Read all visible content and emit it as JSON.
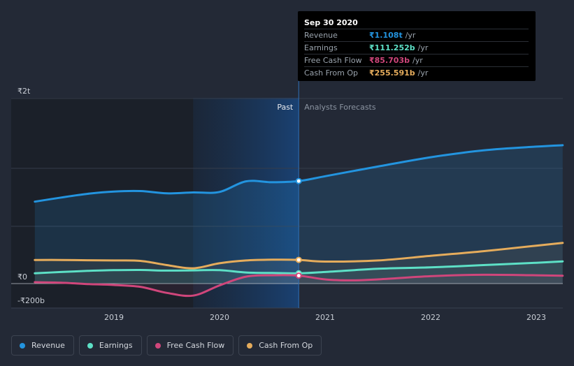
{
  "chart_data": {
    "type": "line",
    "title": "",
    "xlabel": "",
    "ylabel": "",
    "y_unit": "₹",
    "y_ticks": [
      {
        "value": 2000,
        "label": "₹2t"
      },
      {
        "value": 0,
        "label": "₹0"
      },
      {
        "value": -200,
        "label": "-₹200b"
      }
    ],
    "ylim": [
      -270,
      2000
    ],
    "xlim": [
      2018.2,
      2023.25
    ],
    "x_ticks": [
      {
        "value": 2019,
        "label": "2019"
      },
      {
        "value": 2020,
        "label": "2020"
      },
      {
        "value": 2021,
        "label": "2021"
      },
      {
        "value": 2022,
        "label": "2022"
      },
      {
        "value": 2023,
        "label": "2023"
      }
    ],
    "past_label": "Past",
    "forecast_label": "Analysts Forecasts",
    "past_start_x": 2019.75,
    "divider_x": 2020.75,
    "series": [
      {
        "name": "Revenue",
        "color": "#2394df",
        "fill": true,
        "points": [
          [
            2018.25,
            885
          ],
          [
            2018.5,
            930
          ],
          [
            2018.75,
            970
          ],
          [
            2019.0,
            995
          ],
          [
            2019.25,
            1000
          ],
          [
            2019.5,
            975
          ],
          [
            2019.75,
            985
          ],
          [
            2020.0,
            990
          ],
          [
            2020.25,
            1105
          ],
          [
            2020.5,
            1095
          ],
          [
            2020.75,
            1108
          ],
          [
            2021.0,
            1160
          ],
          [
            2021.5,
            1265
          ],
          [
            2022.0,
            1365
          ],
          [
            2022.5,
            1440
          ],
          [
            2023.0,
            1480
          ],
          [
            2023.25,
            1495
          ]
        ]
      },
      {
        "name": "Earnings",
        "color": "#5de0c6",
        "fill": false,
        "points": [
          [
            2018.25,
            112
          ],
          [
            2018.5,
            125
          ],
          [
            2018.75,
            137
          ],
          [
            2019.0,
            145
          ],
          [
            2019.25,
            147
          ],
          [
            2019.5,
            140
          ],
          [
            2019.75,
            143
          ],
          [
            2020.0,
            145
          ],
          [
            2020.25,
            120
          ],
          [
            2020.5,
            115
          ],
          [
            2020.75,
            111
          ],
          [
            2021.0,
            125
          ],
          [
            2021.5,
            160
          ],
          [
            2022.0,
            175
          ],
          [
            2022.5,
            200
          ],
          [
            2023.0,
            225
          ],
          [
            2023.25,
            240
          ]
        ]
      },
      {
        "name": "Free Cash Flow",
        "color": "#d0467b",
        "fill": false,
        "points": [
          [
            2018.25,
            15
          ],
          [
            2018.5,
            10
          ],
          [
            2018.75,
            -5
          ],
          [
            2019.0,
            -15
          ],
          [
            2019.25,
            -35
          ],
          [
            2019.5,
            -100
          ],
          [
            2019.75,
            -130
          ],
          [
            2020.0,
            -20
          ],
          [
            2020.25,
            75
          ],
          [
            2020.5,
            90
          ],
          [
            2020.75,
            86
          ],
          [
            2021.0,
            45
          ],
          [
            2021.25,
            35
          ],
          [
            2021.5,
            45
          ],
          [
            2022.0,
            80
          ],
          [
            2022.5,
            95
          ],
          [
            2023.0,
            90
          ],
          [
            2023.25,
            85
          ]
        ]
      },
      {
        "name": "Cash From Op",
        "color": "#e5ac5c",
        "fill": false,
        "points": [
          [
            2018.25,
            255
          ],
          [
            2018.5,
            255
          ],
          [
            2018.75,
            252
          ],
          [
            2019.0,
            250
          ],
          [
            2019.25,
            245
          ],
          [
            2019.5,
            200
          ],
          [
            2019.75,
            165
          ],
          [
            2020.0,
            220
          ],
          [
            2020.25,
            250
          ],
          [
            2020.5,
            258
          ],
          [
            2020.75,
            256
          ],
          [
            2021.0,
            238
          ],
          [
            2021.5,
            250
          ],
          [
            2022.0,
            300
          ],
          [
            2022.5,
            350
          ],
          [
            2023.0,
            410
          ],
          [
            2023.25,
            440
          ]
        ]
      }
    ]
  },
  "tooltip": {
    "date": "Sep 30 2020",
    "rows": [
      {
        "label": "Revenue",
        "value": "₹1.108t",
        "unit": "/yr",
        "color": "#2394df"
      },
      {
        "label": "Earnings",
        "value": "₹111.252b",
        "unit": "/yr",
        "color": "#5de0c6"
      },
      {
        "label": "Free Cash Flow",
        "value": "₹85.703b",
        "unit": "/yr",
        "color": "#d0467b"
      },
      {
        "label": "Cash From Op",
        "value": "₹255.591b",
        "unit": "/yr",
        "color": "#e5ac5c"
      }
    ]
  },
  "legend": [
    {
      "label": "Revenue",
      "color": "#2394df"
    },
    {
      "label": "Earnings",
      "color": "#5de0c6"
    },
    {
      "label": "Free Cash Flow",
      "color": "#d0467b"
    },
    {
      "label": "Cash From Op",
      "color": "#e5ac5c"
    }
  ]
}
